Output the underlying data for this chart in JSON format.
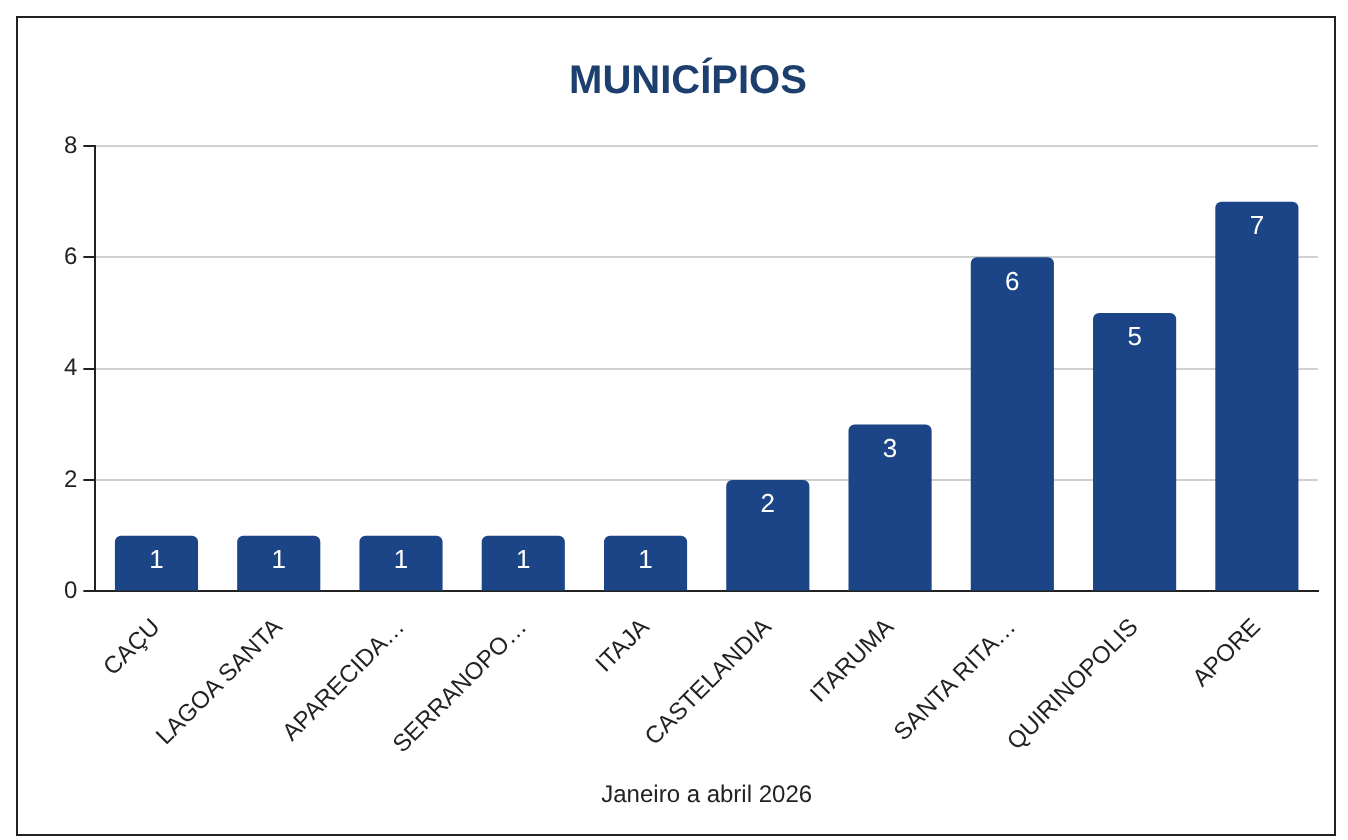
{
  "chart_data": {
    "type": "bar",
    "title": "MUNICÍPIOS",
    "xlabel": "Janeiro a abril 2026",
    "categories": [
      "CAÇU",
      "LAGOA SANTA",
      "APARECIDA…",
      "SERRANOPO…",
      "ITAJA",
      "CASTELANDIA",
      "ITARUMA",
      "SANTA RITA…",
      "QUIRINOPOLIS",
      "APORE"
    ],
    "values": [
      1,
      1,
      1,
      1,
      1,
      2,
      3,
      6,
      5,
      7
    ],
    "color": "#1c4587",
    "ylim": [
      0,
      8
    ],
    "yticks": [
      0,
      2,
      4,
      6,
      8
    ],
    "grid": "y",
    "data_labels": true,
    "legend": false
  }
}
